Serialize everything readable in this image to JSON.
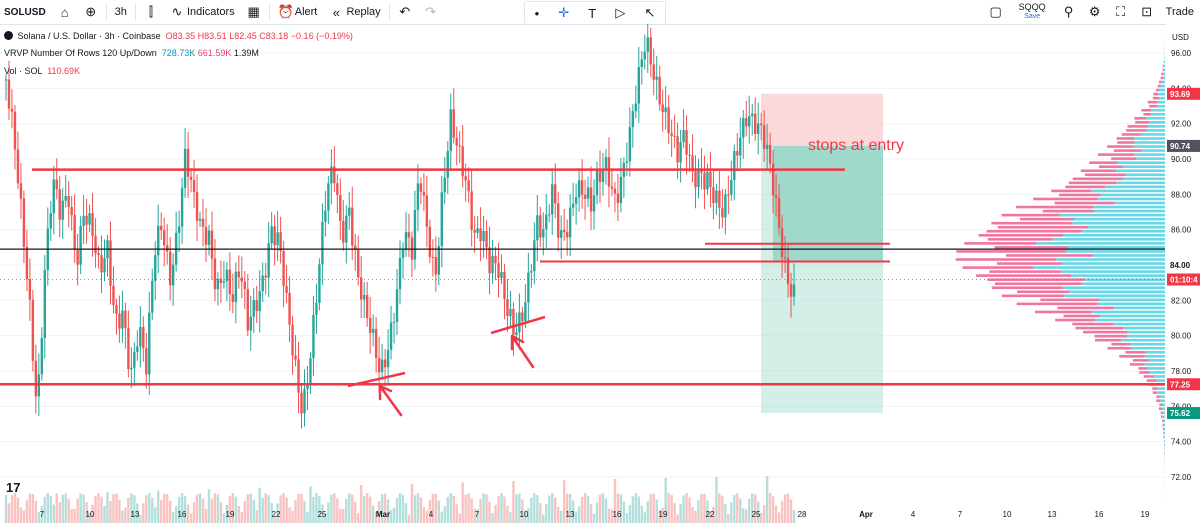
{
  "toolbar": {
    "symbol": "SOLUSD",
    "interval": "3h",
    "indicators_label": "Indicators",
    "alert_label": "Alert",
    "replay_label": "Replay",
    "compare_symbol": "SQQQ",
    "compare_sub": "Save",
    "trade_label": "Trade"
  },
  "legend": {
    "title": "Solana / U.S. Dollar · 3h · Coinbase",
    "ohlc_o": "O83.35",
    "ohlc_h": "H83.51",
    "ohlc_l": "L82.45",
    "ohlc_c": "C83.18",
    "change": "−0.16 (−0.19%)",
    "vrvp_label": "VRVP Number Of Rows 120 Up/Down",
    "vrvp_up": "728.73K",
    "vrvp_down": "661.59K",
    "vrvp_total": "1.39M",
    "vol_label": "Vol · SOL",
    "vol_value": "110.69K"
  },
  "tv_logo": "17",
  "colors": {
    "up": "#26a69a",
    "down": "#ef5350",
    "line": "#f23645",
    "stop": "#f7b9bd",
    "target": "#9fd9cc",
    "vp_up": "#4dd0e1",
    "vp_down": "#ec5f8e"
  },
  "chart_data": {
    "type": "candlestick",
    "title": "Solana / U.S. Dollar · 3h · Coinbase",
    "y_axis": {
      "currency": "USD",
      "range": [
        70.5,
        98.0
      ],
      "ticks": [
        72.0,
        74.0,
        76.0,
        78.0,
        80.0,
        82.0,
        84.0,
        86.0,
        88.0,
        90.0,
        92.0,
        94.0,
        96.0
      ]
    },
    "x_axis": {
      "ticks": [
        "7",
        "10",
        "13",
        "16",
        "19",
        "22",
        "25",
        "Mar",
        "4",
        "7",
        "10",
        "13",
        "16",
        "19",
        "22",
        "25",
        "28",
        "Apr",
        "4",
        "7",
        "10",
        "13",
        "16",
        "19"
      ]
    },
    "price_path": [
      94.5,
      90.5,
      86.0,
      82.0,
      76.5,
      84.5,
      88.5,
      86.0,
      87.5,
      84.5,
      88.0,
      86.5,
      83.0,
      84.0,
      80.5,
      82.0,
      78.5,
      80.5,
      77.5,
      84.0,
      86.5,
      84.0,
      86.5,
      90.0,
      87.0,
      85.5,
      86.0,
      83.5,
      84.0,
      81.5,
      83.0,
      80.5,
      82.5,
      84.0,
      86.0,
      84.5,
      81.0,
      78.5,
      76.5,
      79.5,
      83.0,
      87.0,
      89.0,
      86.0,
      88.0,
      84.0,
      81.0,
      79.0,
      77.5,
      80.0,
      83.0,
      86.0,
      84.0,
      88.5,
      86.0,
      84.0,
      89.0,
      92.0,
      89.5,
      88.0,
      86.0,
      87.0,
      84.5,
      83.5,
      81.0,
      80.0,
      81.5,
      84.0,
      86.5,
      85.0,
      87.5,
      85.5,
      87.0,
      89.0,
      88.0,
      86.5,
      88.5,
      90.0,
      88.5,
      89.5,
      91.0,
      93.5,
      96.5,
      95.5,
      94.0,
      92.0,
      89.5,
      90.5,
      89.0,
      90.0,
      89.5,
      87.5,
      86.0,
      88.5,
      91.5,
      93.5,
      92.5,
      91.0,
      88.5,
      86.0,
      84.0,
      83.18
    ],
    "horizontal_lines": [
      {
        "price": 89.4,
        "color": "#f23645"
      },
      {
        "price": 84.9,
        "color": "#131722"
      },
      {
        "price": 84.2,
        "color": "#f23645"
      },
      {
        "price": 85.2,
        "color": "#f23645"
      },
      {
        "price": 77.25,
        "color": "#f23645"
      }
    ],
    "position": {
      "entry": 90.74,
      "stop": 93.69,
      "target": 75.62
    },
    "annotation": "stops at entry",
    "price_labels": [
      {
        "value": "93.69",
        "style": "red"
      },
      {
        "value": "90.74",
        "style": "dark"
      },
      {
        "value": "84.00",
        "style": "plain"
      },
      {
        "value": "01:10:4",
        "style": "red"
      },
      {
        "value": "77.25",
        "style": "red"
      },
      {
        "value": "75.62",
        "style": "green"
      }
    ]
  }
}
